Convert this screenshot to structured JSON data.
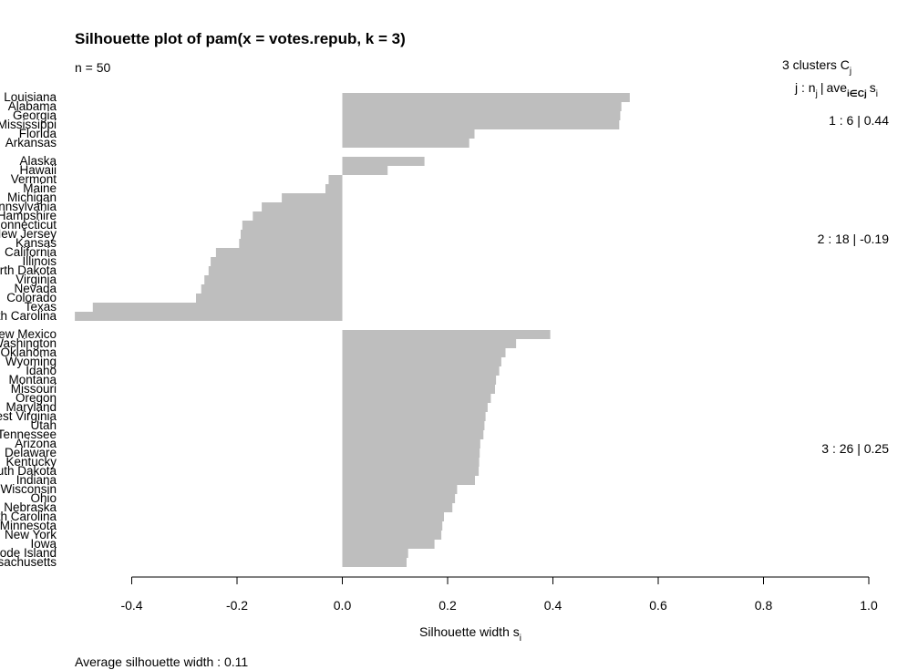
{
  "chart_data": {
    "type": "bar",
    "orientation": "horizontal",
    "title": "Silhouette plot of pam(x = votes.repub, k = 3)",
    "n_label": "n = 50",
    "clusters_header": "3  clusters  C",
    "clusters_header_sub": "j",
    "columns_header": {
      "j": "j :",
      "n": "n",
      "n_sub": "j",
      "sep": "|",
      "ave": "ave",
      "ave_sub": "i∈Cj",
      "s": "s",
      "s_sub": "i"
    },
    "xlabel": "Silhouette width s",
    "xlabel_sub": "i",
    "xlim": [
      -0.5,
      1.0
    ],
    "xticks": [
      -0.4,
      -0.2,
      0.0,
      0.2,
      0.4,
      0.6,
      0.8,
      1.0
    ],
    "xtick_labels": [
      "-0.4",
      "-0.2",
      "0.0",
      "0.2",
      "0.4",
      "0.6",
      "0.8",
      "1.0"
    ],
    "bar_color": "#bebebe",
    "footer": "Average silhouette width :  0.11",
    "clusters": [
      {
        "summary": "1 :   6  |  0.44",
        "labels": [
          "Louisiana",
          "Alabama",
          "Georgia",
          "Mississippi",
          "Florida",
          "Arkansas"
        ],
        "values": [
          0.546,
          0.53,
          0.528,
          0.526,
          0.251,
          0.241
        ]
      },
      {
        "summary": "2 :   18  |  -0.19",
        "labels": [
          "Alaska",
          "Hawaii",
          "Vermont",
          "Maine",
          "Michigan",
          "Pennsylvania",
          "New Hampshire",
          "Connecticut",
          "New Jersey",
          "Kansas",
          "California",
          "Illinois",
          "North Dakota",
          "Virginia",
          "Nevada",
          "Colorado",
          "Texas",
          "South Carolina"
        ],
        "values": [
          0.156,
          0.086,
          -0.026,
          -0.032,
          -0.115,
          -0.153,
          -0.17,
          -0.19,
          -0.193,
          -0.196,
          -0.24,
          -0.25,
          -0.254,
          -0.262,
          -0.268,
          -0.278,
          -0.474,
          -0.508
        ]
      },
      {
        "summary": "3 :   26  |  0.25",
        "labels": [
          "New Mexico",
          "Washington",
          "Oklahoma",
          "Wyoming",
          "Idaho",
          "Montana",
          "Missouri",
          "Oregon",
          "Maryland",
          "West Virginia",
          "Utah",
          "Tennessee",
          "Arizona",
          "Delaware",
          "Kentucky",
          "South Dakota",
          "Indiana",
          "Wisconsin",
          "Ohio",
          "Nebraska",
          "North Carolina",
          "Minnesota",
          "New York",
          "Iowa",
          "Rhode Island",
          "Massachusetts"
        ],
        "values": [
          0.395,
          0.33,
          0.31,
          0.302,
          0.298,
          0.292,
          0.29,
          0.282,
          0.276,
          0.272,
          0.27,
          0.268,
          0.262,
          0.261,
          0.26,
          0.259,
          0.252,
          0.218,
          0.214,
          0.209,
          0.193,
          0.19,
          0.188,
          0.175,
          0.125,
          0.122
        ]
      }
    ]
  }
}
